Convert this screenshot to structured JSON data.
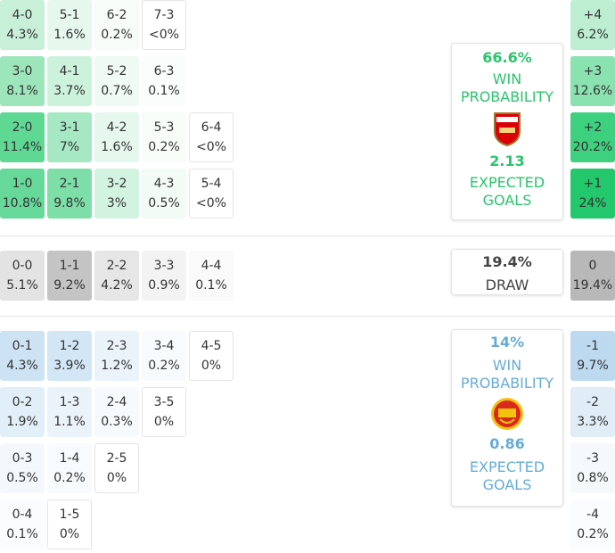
{
  "home_rows": [
    [
      {
        "score": "4-0",
        "prob": "4.3%",
        "color": "#c8f0d8"
      },
      {
        "score": "5-1",
        "prob": "1.6%",
        "color": "#e6f7ee"
      },
      {
        "score": "6-2",
        "prob": "0.2%",
        "color": "#f7fcf9"
      },
      {
        "score": "7-3",
        "prob": "<0%",
        "color": "#ffffff"
      }
    ],
    [
      {
        "score": "3-0",
        "prob": "8.1%",
        "color": "#9de6bc"
      },
      {
        "score": "4-1",
        "prob": "3.7%",
        "color": "#cdf2dc"
      },
      {
        "score": "5-2",
        "prob": "0.7%",
        "color": "#eefaf3"
      },
      {
        "score": "6-3",
        "prob": "0.1%",
        "color": "#fafdfb"
      }
    ],
    [
      {
        "score": "2-0",
        "prob": "11.4%",
        "color": "#5fd894"
      },
      {
        "score": "3-1",
        "prob": "7%",
        "color": "#a6e8c3"
      },
      {
        "score": "4-2",
        "prob": "1.6%",
        "color": "#e6f7ee"
      },
      {
        "score": "5-3",
        "prob": "0.2%",
        "color": "#f7fcf9"
      },
      {
        "score": "6-4",
        "prob": "<0%",
        "color": "#ffffff"
      }
    ],
    [
      {
        "score": "1-0",
        "prob": "10.8%",
        "color": "#66d99a"
      },
      {
        "score": "2-1",
        "prob": "9.8%",
        "color": "#7ddfa7"
      },
      {
        "score": "3-2",
        "prob": "3%",
        "color": "#d3f3e1"
      },
      {
        "score": "4-3",
        "prob": "0.5%",
        "color": "#f3fbf6"
      },
      {
        "score": "5-4",
        "prob": "<0%",
        "color": "#ffffff"
      }
    ]
  ],
  "draw_row": [
    {
      "score": "0-0",
      "prob": "5.1%",
      "color": "#e3e3e3"
    },
    {
      "score": "1-1",
      "prob": "9.2%",
      "color": "#c4c4c4"
    },
    {
      "score": "2-2",
      "prob": "4.2%",
      "color": "#e6e6e6"
    },
    {
      "score": "3-3",
      "prob": "0.9%",
      "color": "#f3f3f3"
    },
    {
      "score": "4-4",
      "prob": "0.1%",
      "color": "#fafafa"
    }
  ],
  "away_rows": [
    [
      {
        "score": "0-1",
        "prob": "4.3%",
        "color": "#cde3f3"
      },
      {
        "score": "1-2",
        "prob": "3.9%",
        "color": "#d2e6f5"
      },
      {
        "score": "2-3",
        "prob": "1.2%",
        "color": "#eaf3fa"
      },
      {
        "score": "3-4",
        "prob": "0.2%",
        "color": "#f8fbfd"
      },
      {
        "score": "4-5",
        "prob": "0%",
        "color": "#ffffff"
      }
    ],
    [
      {
        "score": "0-2",
        "prob": "1.9%",
        "color": "#e3eff8"
      },
      {
        "score": "1-3",
        "prob": "1.1%",
        "color": "#ebf3fa"
      },
      {
        "score": "2-4",
        "prob": "0.3%",
        "color": "#f7fafd"
      },
      {
        "score": "3-5",
        "prob": "0%",
        "color": "#ffffff"
      }
    ],
    [
      {
        "score": "0-3",
        "prob": "0.5%",
        "color": "#f4f8fc"
      },
      {
        "score": "1-4",
        "prob": "0.2%",
        "color": "#f8fbfd"
      },
      {
        "score": "2-5",
        "prob": "0%",
        "color": "#ffffff"
      }
    ],
    [
      {
        "score": "0-4",
        "prob": "0.1%",
        "color": "#fafcfe"
      },
      {
        "score": "1-5",
        "prob": "0%",
        "color": "#ffffff"
      }
    ]
  ],
  "margins": {
    "home": [
      {
        "score": "+4",
        "prob": "6.2%",
        "color": "#bdeed2"
      },
      {
        "score": "+3",
        "prob": "12.6%",
        "color": "#8ae2b0"
      },
      {
        "score": "+2",
        "prob": "20.2%",
        "color": "#3dd07e"
      },
      {
        "score": "+1",
        "prob": "24%",
        "color": "#22c86b"
      }
    ],
    "draw": {
      "score": "0",
      "prob": "19.4%",
      "color": "#b8b8b8"
    },
    "away": [
      {
        "score": "-1",
        "prob": "9.7%",
        "color": "#bcd9ef"
      },
      {
        "score": "-2",
        "prob": "3.3%",
        "color": "#e0edf7"
      },
      {
        "score": "-3",
        "prob": "0.8%",
        "color": "#f5f9fc"
      },
      {
        "score": "-4",
        "prob": "0.2%",
        "color": "#fafcfd"
      }
    ]
  },
  "panels": {
    "home": {
      "win_probability": "66.6%",
      "win_label": "WIN PROBABILITY",
      "expected_goals": "2.13",
      "xg_label": "EXPECTED GOALS"
    },
    "draw": {
      "probability": "19.4%",
      "label": "DRAW"
    },
    "away": {
      "win_probability": "14%",
      "win_label": "WIN PROBABILITY",
      "expected_goals": "0.86",
      "xg_label": "EXPECTED GOALS"
    }
  }
}
